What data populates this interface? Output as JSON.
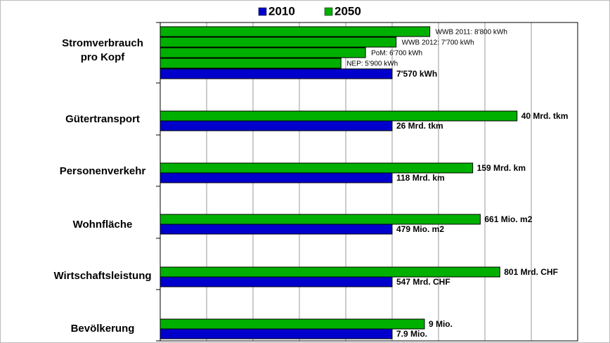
{
  "chart_data": {
    "type": "bar",
    "orientation": "horizontal",
    "categories": [
      "Stromverbrauch\npro Kopf",
      "Gütertransport",
      "Personenverkehr",
      "Wohnfläche",
      "Wirtschaftsleistung",
      "Bevölkerung"
    ],
    "series": [
      {
        "name": "2010",
        "color": "#0000cc",
        "values": [
          7570,
          26,
          118,
          479,
          547,
          7.9
        ],
        "value_labels": [
          "7'570 kWh",
          "26 Mrd. tkm",
          "118 Mrd. km",
          "479 Mio. m2",
          "547 Mrd. CHF",
          "7.9 Mio."
        ]
      },
      {
        "name": "2050",
        "color": "#00b000",
        "values": [
          null,
          40,
          159,
          661,
          801,
          9
        ],
        "value_labels": [
          null,
          "40 Mrd. tkm",
          "159 Mrd. km",
          "661 Mio. m2",
          "801 Mrd. CHF",
          "9 Mio."
        ]
      }
    ],
    "scenarios": {
      "category": 0,
      "series": 1,
      "items": [
        {
          "label": "WWB 2011: 8'800 kWh",
          "value": 8800
        },
        {
          "label": "WWB 2012: 7'700 kWh",
          "value": 7700
        },
        {
          "label": "PoM: 6'700 kWh",
          "value": 6700
        },
        {
          "label": "NEP: 5'900 kWh",
          "value": 5900
        }
      ]
    },
    "grid": true,
    "legend": "top"
  }
}
